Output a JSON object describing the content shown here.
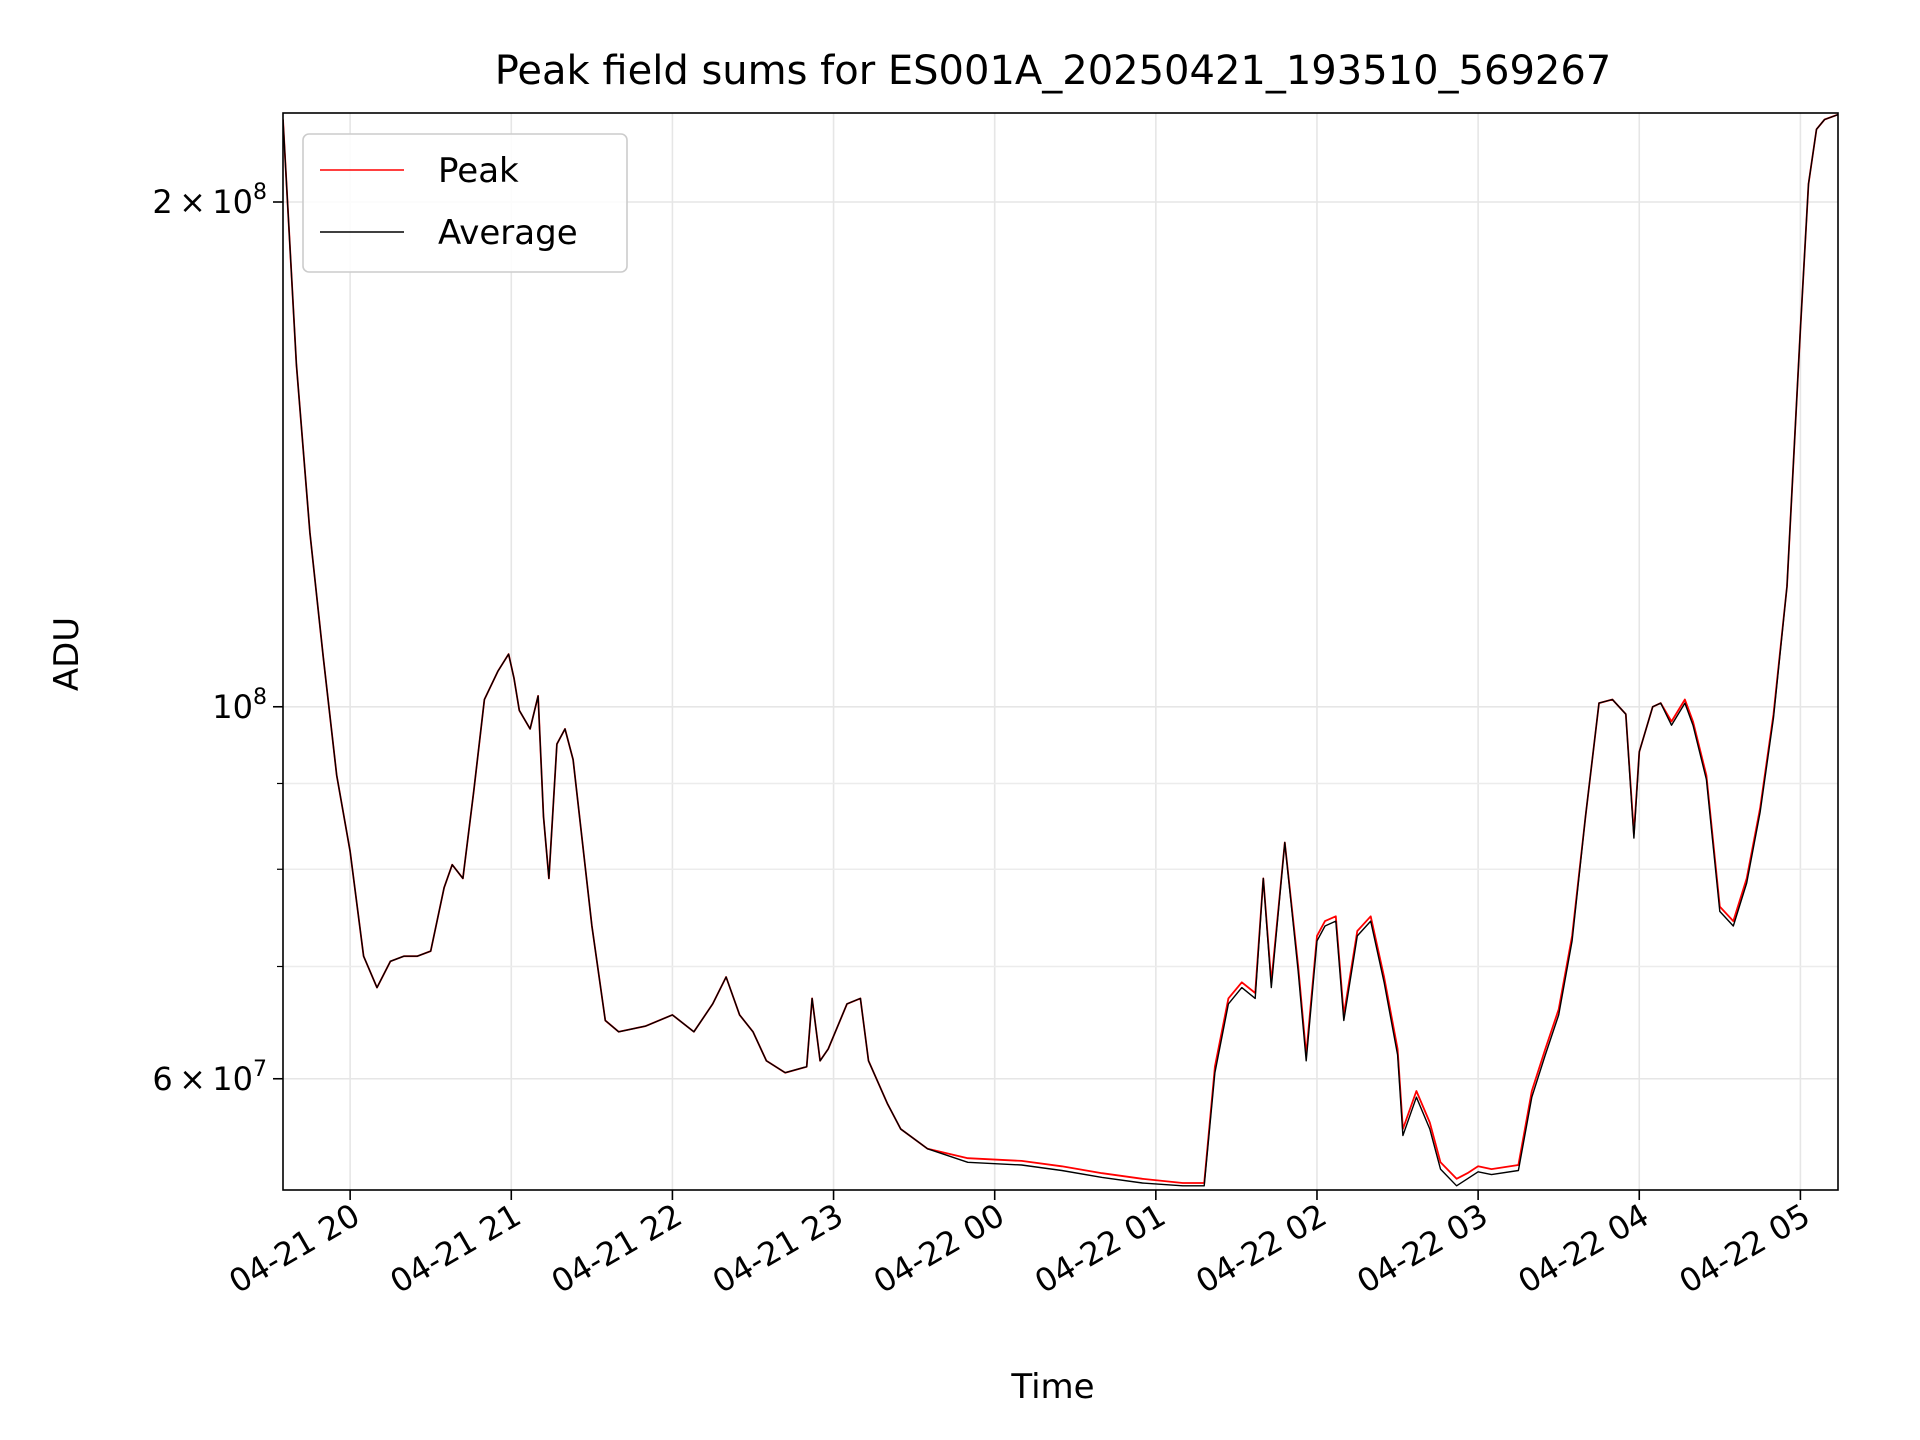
{
  "chart_data": {
    "type": "line",
    "title": "Peak field sums for ES001A_20250421_193510_569267",
    "xlabel": "Time",
    "ylabel": "ADU",
    "yscale": "log",
    "xlim": [
      "2025-04-21 19:35",
      "2025-04-22 05:14"
    ],
    "ylim": [
      51500000,
      226000000
    ],
    "grid": true,
    "legend": "upper left",
    "x_tick_labels": [
      "04-21 20",
      "04-21 21",
      "04-21 22",
      "04-21 23",
      "04-22 00",
      "04-22 01",
      "04-22 02",
      "04-22 03",
      "04-22 04",
      "04-22 05"
    ],
    "x_ticks": [
      "2025-04-21 20:00",
      "2025-04-21 21:00",
      "2025-04-21 22:00",
      "2025-04-21 23:00",
      "2025-04-22 00:00",
      "2025-04-22 01:00",
      "2025-04-22 02:00",
      "2025-04-22 03:00",
      "2025-04-22 04:00",
      "2025-04-22 05:00"
    ],
    "y_tick_labels": [
      {
        "value": 200000000,
        "mantissa": "2",
        "exp": "8"
      },
      {
        "value": 100000000,
        "mantissa": "",
        "exp": "8"
      },
      {
        "value": 60000000,
        "mantissa": "6",
        "exp": "7"
      }
    ],
    "y_minor_ticks": [
      70000000,
      80000000,
      90000000
    ],
    "x": [
      "2025-04-21 19:35",
      "2025-04-21 19:40",
      "2025-04-21 19:45",
      "2025-04-21 19:50",
      "2025-04-21 19:55",
      "2025-04-21 20:00",
      "2025-04-21 20:05",
      "2025-04-21 20:10",
      "2025-04-21 20:15",
      "2025-04-21 20:20",
      "2025-04-21 20:25",
      "2025-04-21 20:30",
      "2025-04-21 20:35",
      "2025-04-21 20:38",
      "2025-04-21 20:42",
      "2025-04-21 20:46",
      "2025-04-21 20:50",
      "2025-04-21 20:55",
      "2025-04-21 20:59",
      "2025-04-21 21:01",
      "2025-04-21 21:03",
      "2025-04-21 21:07",
      "2025-04-21 21:10",
      "2025-04-21 21:12",
      "2025-04-21 21:14",
      "2025-04-21 21:17",
      "2025-04-21 21:20",
      "2025-04-21 21:23",
      "2025-04-21 21:30",
      "2025-04-21 21:35",
      "2025-04-21 21:40",
      "2025-04-21 21:50",
      "2025-04-21 22:00",
      "2025-04-21 22:08",
      "2025-04-21 22:15",
      "2025-04-21 22:20",
      "2025-04-21 22:25",
      "2025-04-21 22:30",
      "2025-04-21 22:35",
      "2025-04-21 22:42",
      "2025-04-21 22:50",
      "2025-04-21 22:52",
      "2025-04-21 22:55",
      "2025-04-21 22:58",
      "2025-04-21 23:05",
      "2025-04-21 23:10",
      "2025-04-21 23:13",
      "2025-04-21 23:20",
      "2025-04-21 23:25",
      "2025-04-21 23:35",
      "2025-04-21 23:50",
      "2025-04-22 00:10",
      "2025-04-22 00:25",
      "2025-04-22 00:40",
      "2025-04-22 00:55",
      "2025-04-22 01:10",
      "2025-04-22 01:18",
      "2025-04-22 01:22",
      "2025-04-22 01:27",
      "2025-04-22 01:32",
      "2025-04-22 01:37",
      "2025-04-22 01:40",
      "2025-04-22 01:43",
      "2025-04-22 01:48",
      "2025-04-22 01:53",
      "2025-04-22 01:56",
      "2025-04-22 02:00",
      "2025-04-22 02:03",
      "2025-04-22 02:07",
      "2025-04-22 02:10",
      "2025-04-22 02:15",
      "2025-04-22 02:20",
      "2025-04-22 02:25",
      "2025-04-22 02:30",
      "2025-04-22 02:32",
      "2025-04-22 02:37",
      "2025-04-22 02:42",
      "2025-04-22 02:46",
      "2025-04-22 02:52",
      "2025-04-22 02:56",
      "2025-04-22 03:00",
      "2025-04-22 03:05",
      "2025-04-22 03:15",
      "2025-04-22 03:20",
      "2025-04-22 03:25",
      "2025-04-22 03:30",
      "2025-04-22 03:35",
      "2025-04-22 03:40",
      "2025-04-22 03:45",
      "2025-04-22 03:50",
      "2025-04-22 03:55",
      "2025-04-22 03:58",
      "2025-04-22 04:00",
      "2025-04-22 04:05",
      "2025-04-22 04:08",
      "2025-04-22 04:12",
      "2025-04-22 04:17",
      "2025-04-22 04:20",
      "2025-04-22 04:25",
      "2025-04-22 04:30",
      "2025-04-22 04:35",
      "2025-04-22 04:40",
      "2025-04-22 04:45",
      "2025-04-22 04:50",
      "2025-04-22 04:55",
      "2025-04-22 05:00",
      "2025-04-22 05:03",
      "2025-04-22 05:06",
      "2025-04-22 05:09",
      "2025-04-22 05:14"
    ],
    "series": [
      {
        "name": "Peak",
        "color": "#ff0000",
        "values": [
          224000000,
          160000000,
          127000000,
          107000000,
          91000000,
          82000000,
          71000000,
          68000000,
          70500000,
          71000000,
          71000000,
          71500000,
          78000000,
          80500000,
          79000000,
          89000000,
          101000000,
          105000000,
          107500000,
          104000000,
          99500000,
          97000000,
          101500000,
          86000000,
          79000000,
          95000000,
          97000000,
          93000000,
          74000000,
          65000000,
          64000000,
          64500000,
          65500000,
          64000000,
          66500000,
          69000000,
          65500000,
          64000000,
          61500000,
          60500000,
          61000000,
          67000000,
          61500000,
          62500000,
          66500000,
          67000000,
          61500000,
          58000000,
          56000000,
          54500000,
          53800000,
          53600000,
          53200000,
          52700000,
          52300000,
          52000000,
          52000000,
          61000000,
          67000000,
          68500000,
          67500000,
          79000000,
          68500000,
          83000000,
          70000000,
          62000000,
          73000000,
          74500000,
          75000000,
          65500000,
          73500000,
          75000000,
          69000000,
          62500000,
          56000000,
          59000000,
          56500000,
          53500000,
          52300000,
          52700000,
          53200000,
          53000000,
          53300000,
          59000000,
          62500000,
          66000000,
          73000000,
          86000000,
          100500000,
          101000000,
          99000000,
          84000000,
          94000000,
          100000000,
          100500000,
          98000000,
          101000000,
          98000000,
          91000000,
          76000000,
          74500000,
          79000000,
          87000000,
          99000000,
          118000000,
          168000000,
          205000000,
          221000000,
          224000000,
          225500000
        ]
      },
      {
        "name": "Average",
        "color": "#000000",
        "values": [
          224000000,
          160000000,
          127000000,
          107000000,
          91000000,
          82000000,
          71000000,
          68000000,
          70500000,
          71000000,
          71000000,
          71500000,
          78000000,
          80500000,
          79000000,
          89000000,
          101000000,
          105000000,
          107500000,
          104000000,
          99500000,
          97000000,
          101500000,
          86000000,
          79000000,
          95000000,
          97000000,
          93000000,
          74000000,
          65000000,
          64000000,
          64500000,
          65500000,
          64000000,
          66500000,
          69000000,
          65500000,
          64000000,
          61500000,
          60500000,
          61000000,
          67000000,
          61500000,
          62500000,
          66500000,
          67000000,
          61500000,
          58000000,
          56000000,
          54500000,
          53500000,
          53300000,
          52900000,
          52400000,
          52000000,
          51800000,
          51800000,
          60500000,
          66500000,
          68000000,
          67000000,
          79000000,
          68000000,
          83000000,
          69500000,
          61500000,
          72500000,
          74000000,
          74500000,
          65000000,
          73000000,
          74500000,
          68500000,
          62000000,
          55500000,
          58500000,
          56000000,
          53000000,
          51800000,
          52300000,
          52800000,
          52600000,
          52900000,
          58500000,
          62000000,
          65500000,
          72500000,
          86000000,
          100500000,
          101000000,
          99000000,
          83500000,
          94000000,
          100000000,
          100500000,
          97500000,
          100500000,
          97500000,
          90500000,
          75500000,
          74000000,
          78500000,
          86500000,
          98500000,
          118000000,
          168000000,
          205000000,
          221000000,
          224000000,
          225500000
        ]
      }
    ]
  }
}
